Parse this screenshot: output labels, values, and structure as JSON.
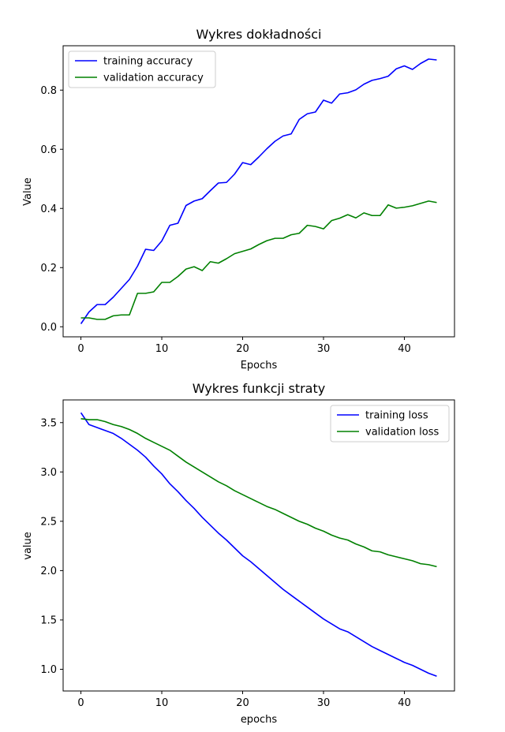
{
  "chart_data": [
    {
      "type": "line",
      "title": "Wykres dokładności",
      "xlabel": "Epochs",
      "ylabel": "Value",
      "xlim": [
        -2.2,
        46.2
      ],
      "ylim": [
        -0.034,
        0.95
      ],
      "xticks": [
        0,
        10,
        20,
        30,
        40
      ],
      "yticks": [
        0.0,
        0.2,
        0.4,
        0.6,
        0.8
      ],
      "ytick_labels": [
        "0.0",
        "0.2",
        "0.4",
        "0.6",
        "0.8"
      ],
      "legend_position": "top-left",
      "grid": false,
      "x": [
        0,
        1,
        2,
        3,
        4,
        5,
        6,
        7,
        8,
        9,
        10,
        11,
        12,
        13,
        14,
        15,
        16,
        17,
        18,
        19,
        20,
        21,
        22,
        23,
        24,
        25,
        26,
        27,
        28,
        29,
        30,
        31,
        32,
        33,
        34,
        35,
        36,
        37,
        38,
        39,
        40,
        41,
        42,
        43,
        44
      ],
      "series": [
        {
          "name": "training accuracy",
          "color": "#0000ff",
          "values": [
            0.01,
            0.05,
            0.075,
            0.075,
            0.1,
            0.13,
            0.16,
            0.205,
            0.262,
            0.258,
            0.29,
            0.343,
            0.35,
            0.41,
            0.425,
            0.433,
            0.46,
            0.486,
            0.488,
            0.516,
            0.555,
            0.548,
            0.574,
            0.602,
            0.627,
            0.645,
            0.652,
            0.701,
            0.72,
            0.726,
            0.766,
            0.756,
            0.787,
            0.791,
            0.801,
            0.82,
            0.833,
            0.839,
            0.847,
            0.872,
            0.882,
            0.87,
            0.89,
            0.905,
            0.902
          ]
        },
        {
          "name": "validation accuracy",
          "color": "#008000",
          "values": [
            0.03,
            0.03,
            0.025,
            0.025,
            0.037,
            0.04,
            0.04,
            0.113,
            0.113,
            0.118,
            0.15,
            0.15,
            0.17,
            0.195,
            0.203,
            0.19,
            0.22,
            0.215,
            0.23,
            0.247,
            0.255,
            0.263,
            0.278,
            0.291,
            0.299,
            0.299,
            0.311,
            0.316,
            0.343,
            0.339,
            0.331,
            0.359,
            0.367,
            0.379,
            0.368,
            0.385,
            0.376,
            0.376,
            0.412,
            0.401,
            0.404,
            0.409,
            0.417,
            0.425,
            0.42
          ]
        }
      ]
    },
    {
      "type": "line",
      "title": "Wykres funkcji straty",
      "xlabel": "epochs",
      "ylabel": "value",
      "xlim": [
        -2.2,
        46.2
      ],
      "ylim": [
        0.78,
        3.73
      ],
      "xticks": [
        0,
        10,
        20,
        30,
        40
      ],
      "yticks": [
        1.0,
        1.5,
        2.0,
        2.5,
        3.0,
        3.5
      ],
      "ytick_labels": [
        "1.0",
        "1.5",
        "2.0",
        "2.5",
        "3.0",
        "3.5"
      ],
      "legend_position": "top-right",
      "grid": false,
      "x": [
        0,
        1,
        2,
        3,
        4,
        5,
        6,
        7,
        8,
        9,
        10,
        11,
        12,
        13,
        14,
        15,
        16,
        17,
        18,
        19,
        20,
        21,
        22,
        23,
        24,
        25,
        26,
        27,
        28,
        29,
        30,
        31,
        32,
        33,
        34,
        35,
        36,
        37,
        38,
        39,
        40,
        41,
        42,
        43,
        44
      ],
      "series": [
        {
          "name": "training loss",
          "color": "#0000ff",
          "values": [
            3.6,
            3.48,
            3.45,
            3.42,
            3.39,
            3.34,
            3.28,
            3.22,
            3.15,
            3.06,
            2.98,
            2.88,
            2.8,
            2.71,
            2.63,
            2.54,
            2.46,
            2.38,
            2.31,
            2.23,
            2.15,
            2.09,
            2.02,
            1.95,
            1.88,
            1.81,
            1.75,
            1.69,
            1.63,
            1.57,
            1.51,
            1.46,
            1.41,
            1.38,
            1.33,
            1.28,
            1.23,
            1.19,
            1.15,
            1.11,
            1.07,
            1.04,
            1.0,
            0.96,
            0.93
          ]
        },
        {
          "name": "validation loss",
          "color": "#008000",
          "values": [
            3.54,
            3.53,
            3.53,
            3.51,
            3.48,
            3.46,
            3.43,
            3.39,
            3.34,
            3.3,
            3.26,
            3.22,
            3.16,
            3.1,
            3.05,
            3.0,
            2.95,
            2.9,
            2.86,
            2.81,
            2.77,
            2.73,
            2.69,
            2.65,
            2.62,
            2.58,
            2.54,
            2.5,
            2.47,
            2.43,
            2.4,
            2.36,
            2.33,
            2.31,
            2.27,
            2.24,
            2.2,
            2.19,
            2.16,
            2.14,
            2.12,
            2.1,
            2.07,
            2.06,
            2.04
          ]
        }
      ]
    }
  ]
}
